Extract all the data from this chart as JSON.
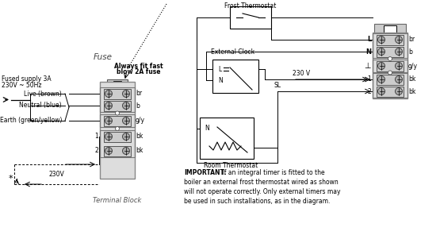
{
  "bg_color": "#ffffff",
  "important_text_bold": "IMPORTANT:",
  "important_text_rest": " If an integral timer is fitted to the",
  "important_line2": "boiler an external frost thermostat wired as shown",
  "important_line3": "will not operate correctly. Only external timers may",
  "important_line4": "be used in such installations, as in the diagram.",
  "fused_supply_line1": "Fused supply 3A",
  "fused_supply_line2": "230V ~ 50Hz",
  "fuse_label": "Fuse",
  "always_fit_line1": "Always fit fast",
  "always_fit_line2": "blow 2A fuse",
  "live_label": "Live (brown)",
  "neutral_label": "Neutral (blue)",
  "earth_label": "Earth (green/yellow)",
  "terminal_block_label": "Terminal Block",
  "v230_label": "230V",
  "frost_label": "Frost Thermostat",
  "clock_label": "External Clock",
  "room_label": "Room Thermostat",
  "v230_right": "230 V",
  "sl_label": "SL",
  "label_br": "br",
  "label_b": "b",
  "label_gy": "g/y",
  "label_bk": "bk",
  "label_L": "L",
  "label_N": "N",
  "label_earth": "⊥",
  "label_1": "1",
  "label_2": "2",
  "label_L_clock": "L",
  "label_N_clock": "N",
  "label_N_room": "N"
}
